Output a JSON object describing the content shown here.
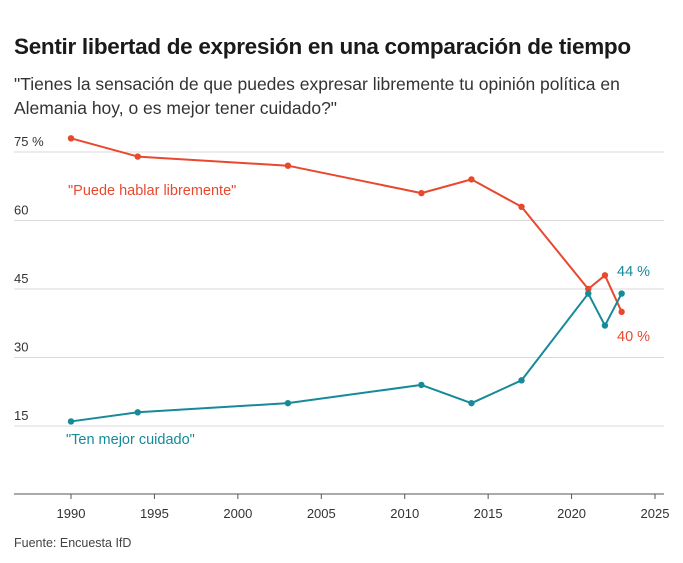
{
  "title": "Sentir libertad de expresión en una comparación de tiempo",
  "subtitle": "\"Tienes la sensación de que puedes expresar libremente tu opinión política en Alemania hoy, o es mejor tener cuidado?\"",
  "source": "Fuente: Encuesta IfD",
  "colors": {
    "free": "#e8492e",
    "careful": "#168a99",
    "grid": "#d9d9d9",
    "axis": "#555555"
  },
  "chart_data": {
    "type": "line",
    "title": "Sentir libertad de expresión en una comparación de tiempo",
    "xlim": [
      1987,
      2025
    ],
    "ylim": [
      0,
      78
    ],
    "x_ticks": [
      "1990",
      "1995",
      "2000",
      "2005",
      "2010",
      "2015",
      "2020",
      "2025"
    ],
    "y_ticks": [
      {
        "value": 75,
        "label": "75 %"
      },
      {
        "value": 60,
        "label": "60"
      },
      {
        "value": 45,
        "label": "45"
      },
      {
        "value": 30,
        "label": "30"
      },
      {
        "value": 15,
        "label": "15"
      }
    ],
    "grid": true,
    "series": [
      {
        "name": "\"Puede hablar libremente\"",
        "color": "#e8492e",
        "x": [
          1990,
          1994,
          2003,
          2011,
          2014,
          2017,
          2021,
          2022,
          2023
        ],
        "y": [
          78,
          74,
          72,
          66,
          69,
          63,
          45,
          48,
          40
        ],
        "end_label": "40 %"
      },
      {
        "name": "\"Ten mejor cuidado\"",
        "color": "#168a99",
        "x": [
          1990,
          1994,
          2003,
          2011,
          2014,
          2017,
          2021,
          2022,
          2023
        ],
        "y": [
          16,
          18,
          20,
          24,
          20,
          25,
          44,
          37,
          44
        ],
        "end_label": "44 %"
      }
    ]
  }
}
